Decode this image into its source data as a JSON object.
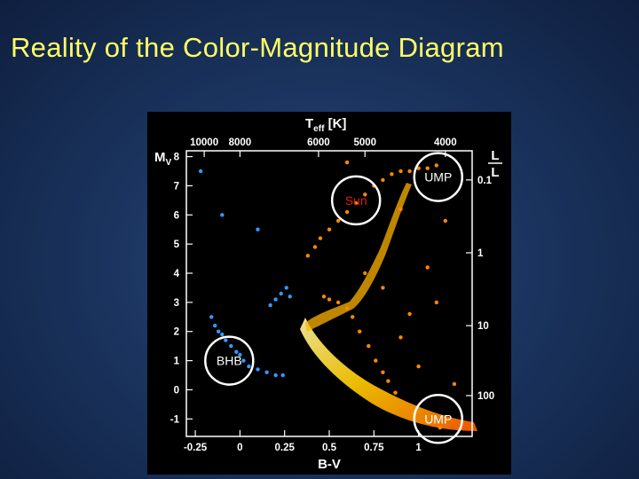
{
  "slide": {
    "title": "Reality of the Color-Magnitude Diagram"
  },
  "chart_data": {
    "type": "scatter",
    "title": "",
    "xlabel": "B-V",
    "ylabel": "M",
    "ylabel_sub": "V",
    "top_axis_label": "T",
    "top_axis_label_sub": "eff",
    "top_axis_label_unit": " [K]",
    "right_axis_label": "L",
    "right_axis_label_den": "L",
    "xlim": [
      -0.3,
      1.3
    ],
    "ylim": [
      8.2,
      -1.6
    ],
    "x_ticks": [
      -0.25,
      0,
      0.25,
      0.5,
      0.75,
      1
    ],
    "x_tick_labels": [
      "-0.25",
      "0",
      "0.25",
      "0.5",
      "0.75",
      "1"
    ],
    "y_ticks": [
      -1,
      0,
      1,
      2,
      3,
      4,
      5,
      6,
      7,
      8
    ],
    "y_tick_labels": [
      "-1",
      "0",
      "1",
      "2",
      "3",
      "4",
      "5",
      "6",
      "7",
      "8"
    ],
    "top_ticks": [
      {
        "label": "10000",
        "bv": -0.2
      },
      {
        "label": "8000",
        "bv": 0.0
      },
      {
        "label": "6000",
        "bv": 0.44
      },
      {
        "label": "5000",
        "bv": 0.7
      },
      {
        "label": "4000",
        "bv": 1.15
      }
    ],
    "right_ticks": [
      {
        "label": "100",
        "mv": -0.2
      },
      {
        "label": "10",
        "mv": 2.2
      },
      {
        "label": "1",
        "mv": 4.7
      },
      {
        "label": "0.1",
        "mv": 7.2
      }
    ],
    "grid": false,
    "series": [
      {
        "color": "#ff8800",
        "points": [
          [
            0.38,
            4.6
          ],
          [
            0.42,
            4.9
          ],
          [
            0.45,
            5.2
          ],
          [
            0.5,
            5.5
          ],
          [
            0.55,
            5.8
          ],
          [
            0.6,
            6.1
          ],
          [
            0.65,
            6.4
          ],
          [
            0.7,
            6.7
          ],
          [
            0.75,
            7.0
          ],
          [
            0.8,
            7.2
          ],
          [
            0.85,
            7.4
          ],
          [
            0.9,
            7.5
          ],
          [
            0.95,
            7.5
          ],
          [
            1.0,
            7.6
          ],
          [
            1.05,
            7.6
          ],
          [
            1.1,
            7.7
          ],
          [
            0.47,
            3.2
          ],
          [
            0.5,
            3.1
          ],
          [
            0.55,
            3.0
          ],
          [
            0.6,
            2.8
          ],
          [
            0.63,
            2.5
          ],
          [
            0.67,
            2.0
          ],
          [
            0.72,
            1.5
          ],
          [
            0.76,
            1.0
          ],
          [
            0.8,
            0.6
          ],
          [
            0.83,
            0.3
          ],
          [
            0.87,
            -0.1
          ],
          [
            0.92,
            -0.5
          ],
          [
            0.97,
            -0.8
          ],
          [
            1.05,
            -1.1
          ],
          [
            1.12,
            -1.3
          ],
          [
            1.0,
            0.8
          ],
          [
            0.9,
            1.8
          ],
          [
            1.1,
            3.0
          ],
          [
            0.8,
            3.5
          ],
          [
            1.05,
            4.2
          ],
          [
            1.2,
            0.2
          ],
          [
            0.95,
            2.6
          ],
          [
            0.7,
            4.0
          ],
          [
            1.15,
            5.8
          ],
          [
            0.6,
            7.8
          ],
          [
            0.9,
            6.2
          ]
        ]
      },
      {
        "color": "#3399ff",
        "points": [
          [
            -0.12,
            2.0
          ],
          [
            -0.1,
            1.9
          ],
          [
            -0.08,
            1.7
          ],
          [
            -0.05,
            1.5
          ],
          [
            -0.02,
            1.3
          ],
          [
            0.0,
            1.2
          ],
          [
            0.02,
            1.0
          ],
          [
            0.05,
            0.8
          ],
          [
            0.1,
            0.7
          ],
          [
            0.15,
            0.6
          ],
          [
            0.2,
            0.5
          ],
          [
            0.24,
            0.5
          ],
          [
            -0.14,
            2.2
          ],
          [
            -0.16,
            2.5
          ],
          [
            0.17,
            2.9
          ],
          [
            0.2,
            3.1
          ],
          [
            0.23,
            3.3
          ],
          [
            0.26,
            3.5
          ],
          [
            0.28,
            3.2
          ],
          [
            -0.22,
            7.5
          ],
          [
            -0.1,
            6.0
          ],
          [
            0.1,
            5.5
          ]
        ]
      }
    ],
    "annotations": [
      {
        "label": "UMP",
        "bv": 1.11,
        "mv": -1.0,
        "color": "#ffffff"
      },
      {
        "label": "BHB",
        "bv": -0.06,
        "mv": 1.0,
        "color": "#ffffff"
      },
      {
        "label": "Sun",
        "bv": 0.65,
        "mv": 6.5,
        "color": "#dd2200"
      },
      {
        "label": "UMP",
        "bv": 1.11,
        "mv": 7.3,
        "color": "#ffffff"
      }
    ]
  }
}
